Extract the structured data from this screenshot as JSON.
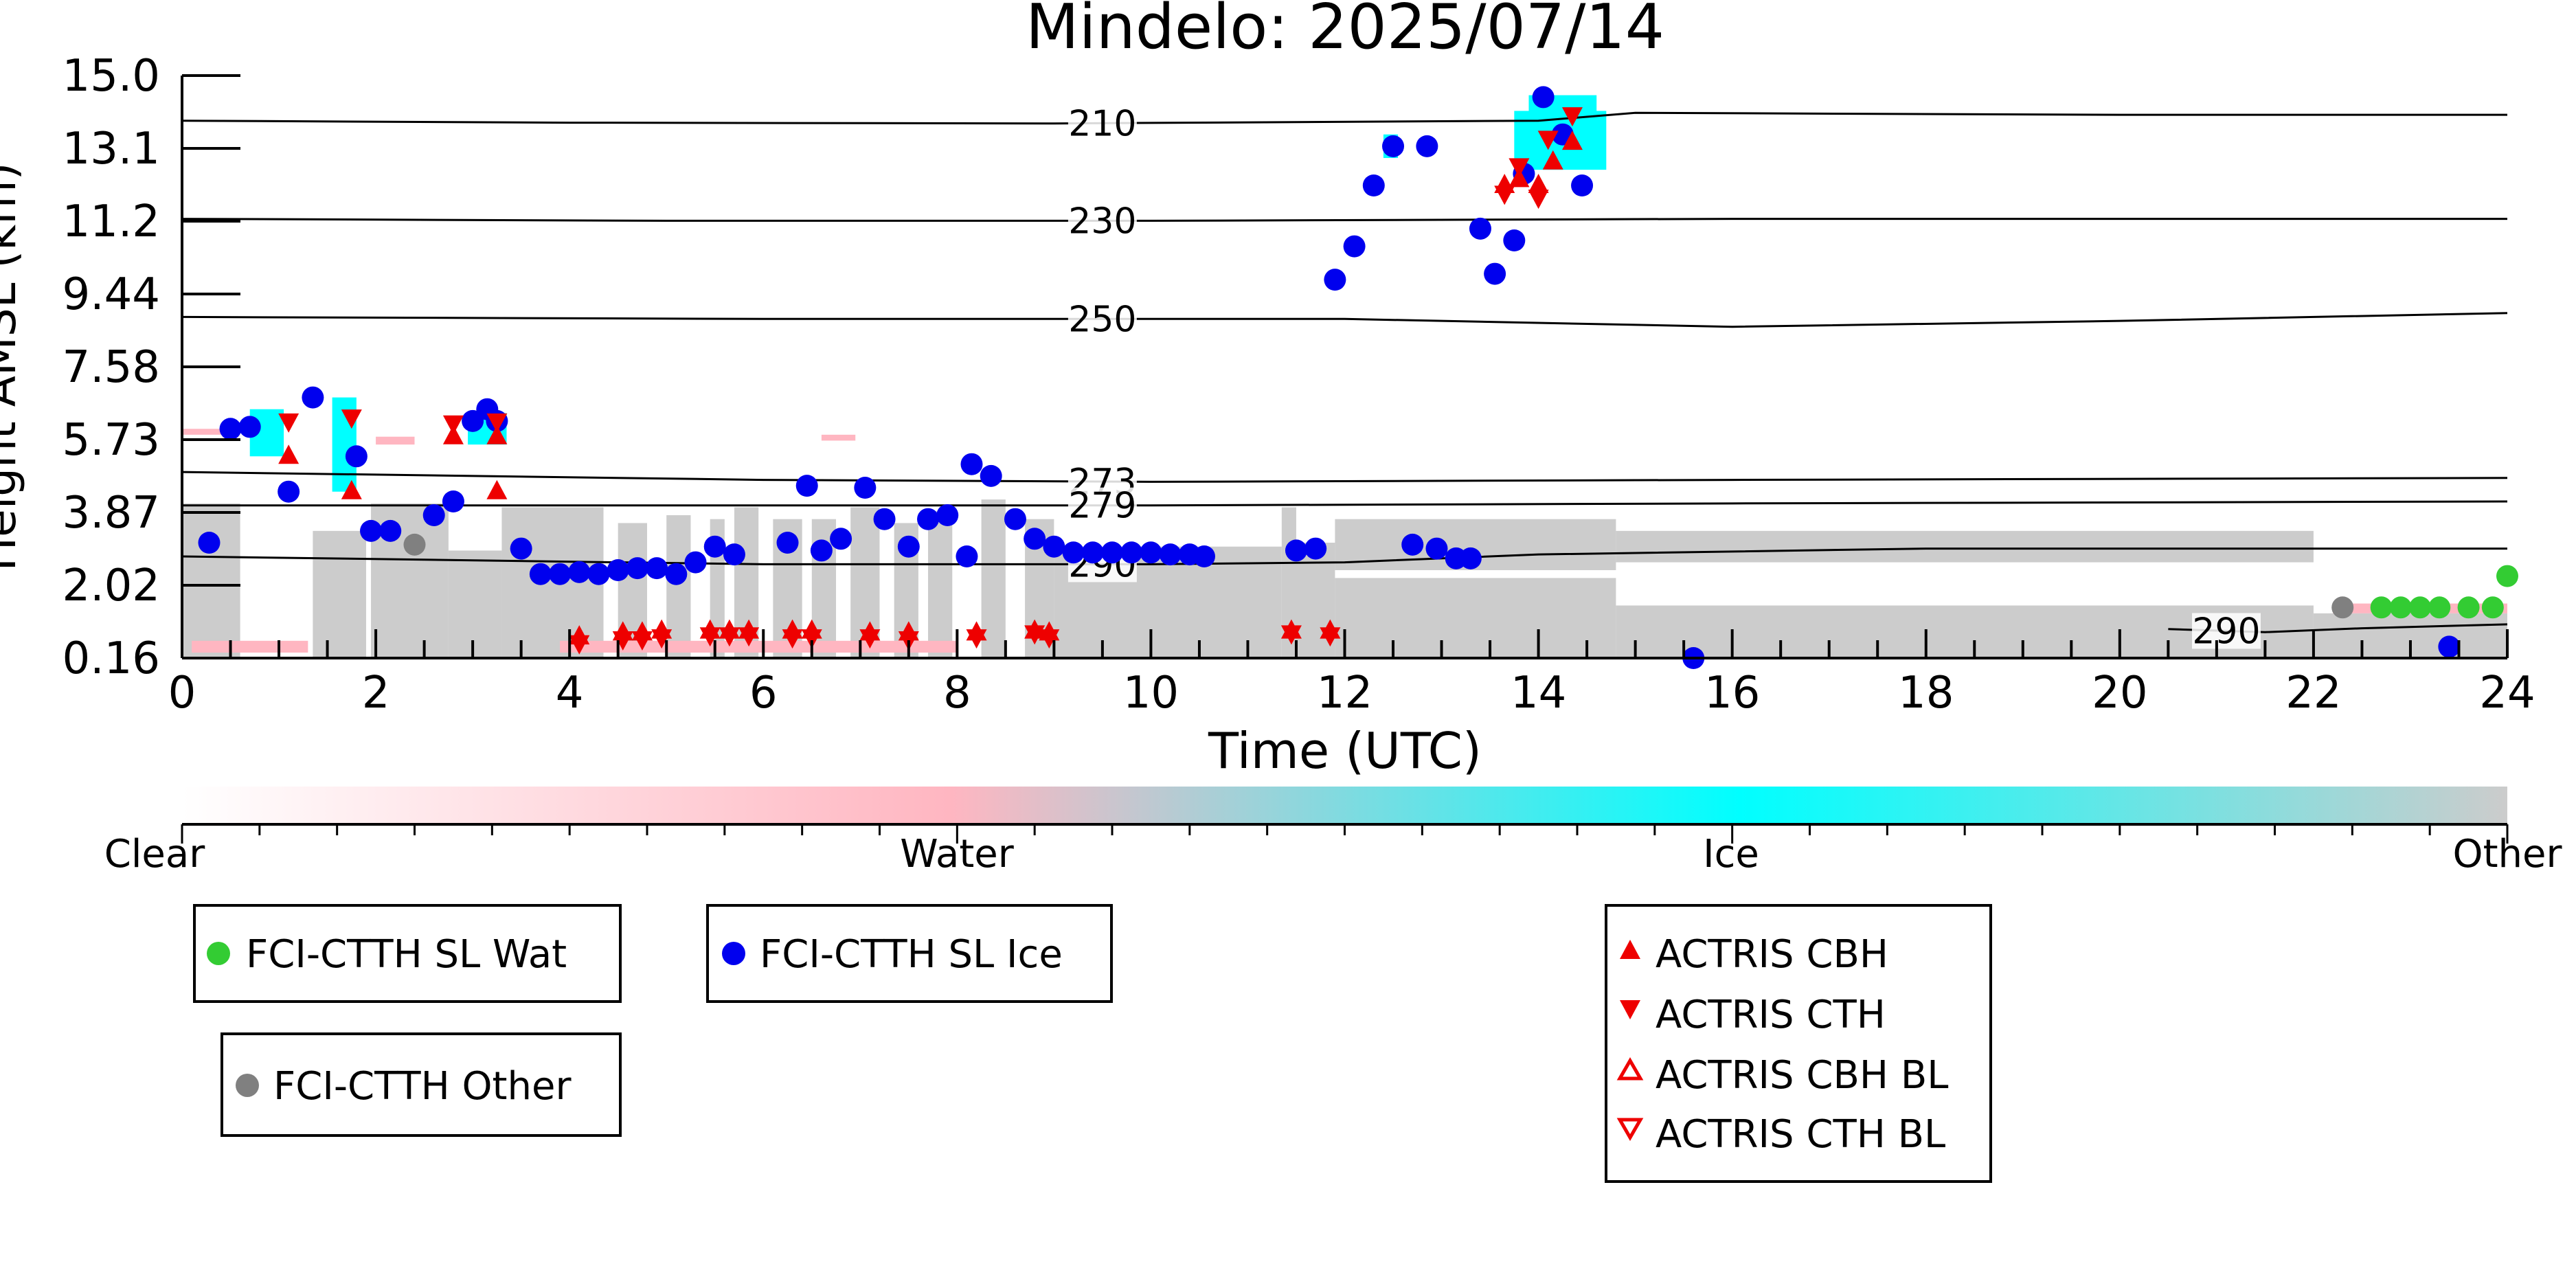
{
  "chart_data": {
    "type": "scatter",
    "title": "Mindelo: 2025/07/14",
    "xlabel": "Time (UTC)",
    "ylabel": "Height AMSL (km)",
    "xlim": [
      0,
      24
    ],
    "ylim": [
      0.16,
      15.0
    ],
    "x_ticks": [
      0,
      2,
      4,
      6,
      8,
      10,
      12,
      14,
      16,
      18,
      20,
      22,
      24
    ],
    "y_tick_labels": [
      "0.16",
      "2.02",
      "3.87",
      "5.73",
      "7.58",
      "9.44",
      "11.2",
      "13.1",
      "15.0"
    ],
    "colorbar": {
      "labels": [
        "Clear",
        "Water",
        "Ice",
        "Other"
      ],
      "colors": [
        "#ffffff",
        "#ffb6c1",
        "#00ffff",
        "#cccccc"
      ]
    },
    "contours": [
      {
        "label": "210",
        "points": [
          [
            0,
            13.85
          ],
          [
            4,
            13.8
          ],
          [
            9,
            13.78
          ],
          [
            14,
            13.85
          ],
          [
            15,
            14.05
          ],
          [
            20,
            14.0
          ],
          [
            24,
            14.0
          ]
        ]
      },
      {
        "label": "230",
        "points": [
          [
            0,
            11.35
          ],
          [
            5,
            11.3
          ],
          [
            10,
            11.3
          ],
          [
            16,
            11.35
          ],
          [
            24,
            11.35
          ]
        ]
      },
      {
        "label": "250",
        "points": [
          [
            0,
            8.85
          ],
          [
            6,
            8.8
          ],
          [
            12,
            8.8
          ],
          [
            16,
            8.6
          ],
          [
            20,
            8.75
          ],
          [
            24,
            8.95
          ]
        ]
      },
      {
        "label": "273",
        "points": [
          [
            0,
            4.9
          ],
          [
            6,
            4.7
          ],
          [
            10,
            4.65
          ],
          [
            16,
            4.7
          ],
          [
            24,
            4.75
          ]
        ]
      },
      {
        "label": "279",
        "points": [
          [
            0,
            4.05
          ],
          [
            6,
            4.05
          ],
          [
            10,
            4.05
          ],
          [
            16,
            4.1
          ],
          [
            24,
            4.15
          ]
        ]
      },
      {
        "label": "290",
        "points": [
          [
            0,
            2.75
          ],
          [
            6,
            2.55
          ],
          [
            10,
            2.55
          ],
          [
            12,
            2.6
          ],
          [
            14,
            2.8
          ],
          [
            18,
            2.95
          ],
          [
            24,
            2.95
          ]
        ]
      },
      {
        "label": "290",
        "points": [
          [
            20.5,
            0.9
          ],
          [
            21.5,
            0.82
          ],
          [
            22.5,
            0.92
          ],
          [
            24,
            1.02
          ]
        ]
      }
    ],
    "series": [
      {
        "name": "FCI-CTTH SL Wat",
        "color": "#33cc33",
        "marker": "circle",
        "points": [
          [
            22.7,
            1.45
          ],
          [
            22.9,
            1.45
          ],
          [
            23.1,
            1.45
          ],
          [
            23.3,
            1.45
          ],
          [
            23.6,
            1.45
          ],
          [
            23.85,
            1.45
          ],
          [
            24.0,
            2.25
          ]
        ]
      },
      {
        "name": "FCI-CTTH SL Ice",
        "color": "#0000ee",
        "marker": "circle",
        "points": [
          [
            0.28,
            3.1
          ],
          [
            0.5,
            6.0
          ],
          [
            0.7,
            6.05
          ],
          [
            1.1,
            4.4
          ],
          [
            1.35,
            6.8
          ],
          [
            1.8,
            5.3
          ],
          [
            1.95,
            3.4
          ],
          [
            2.15,
            3.4
          ],
          [
            2.6,
            3.8
          ],
          [
            2.8,
            4.15
          ],
          [
            3.0,
            6.2
          ],
          [
            3.15,
            6.5
          ],
          [
            3.25,
            6.2
          ],
          [
            3.5,
            2.95
          ],
          [
            3.7,
            2.3
          ],
          [
            3.9,
            2.3
          ],
          [
            4.1,
            2.35
          ],
          [
            4.3,
            2.3
          ],
          [
            4.5,
            2.4
          ],
          [
            4.7,
            2.45
          ],
          [
            4.9,
            2.45
          ],
          [
            5.1,
            2.3
          ],
          [
            5.3,
            2.6
          ],
          [
            5.5,
            3.0
          ],
          [
            5.7,
            2.8
          ],
          [
            6.25,
            3.1
          ],
          [
            6.45,
            4.55
          ],
          [
            6.6,
            2.9
          ],
          [
            6.8,
            3.2
          ],
          [
            7.05,
            4.5
          ],
          [
            7.25,
            3.7
          ],
          [
            7.5,
            3.0
          ],
          [
            7.7,
            3.7
          ],
          [
            7.9,
            3.8
          ],
          [
            8.1,
            2.75
          ],
          [
            8.15,
            5.1
          ],
          [
            8.35,
            4.8
          ],
          [
            8.6,
            3.7
          ],
          [
            8.8,
            3.2
          ],
          [
            9.0,
            3.0
          ],
          [
            9.2,
            2.85
          ],
          [
            9.4,
            2.85
          ],
          [
            9.6,
            2.85
          ],
          [
            9.8,
            2.85
          ],
          [
            10.0,
            2.85
          ],
          [
            10.2,
            2.8
          ],
          [
            10.4,
            2.8
          ],
          [
            10.55,
            2.75
          ],
          [
            11.5,
            2.9
          ],
          [
            11.7,
            2.95
          ],
          [
            11.9,
            9.8
          ],
          [
            12.1,
            10.65
          ],
          [
            12.3,
            12.2
          ],
          [
            12.5,
            13.2
          ],
          [
            12.7,
            3.05
          ],
          [
            12.85,
            13.2
          ],
          [
            12.95,
            2.95
          ],
          [
            13.15,
            2.7
          ],
          [
            13.3,
            2.7
          ],
          [
            13.4,
            11.1
          ],
          [
            13.55,
            9.95
          ],
          [
            13.75,
            10.8
          ],
          [
            13.85,
            12.5
          ],
          [
            14.05,
            14.45
          ],
          [
            14.25,
            13.5
          ],
          [
            14.45,
            12.2
          ],
          [
            15.6,
            0.16
          ],
          [
            23.4,
            0.45
          ]
        ]
      },
      {
        "name": "FCI-CTTH Other",
        "color": "#808080",
        "marker": "circle",
        "points": [
          [
            2.4,
            3.05
          ],
          [
            22.3,
            1.45
          ]
        ]
      },
      {
        "name": "ACTRIS CBH",
        "color": "#ee0000",
        "marker": "triangle-up",
        "points": [
          [
            1.1,
            5.3
          ],
          [
            1.75,
            4.4
          ],
          [
            2.8,
            5.8
          ],
          [
            3.25,
            4.4
          ],
          [
            3.25,
            5.8
          ],
          [
            4.1,
            0.7
          ],
          [
            4.55,
            0.8
          ],
          [
            4.75,
            0.8
          ],
          [
            4.95,
            0.85
          ],
          [
            5.45,
            0.85
          ],
          [
            5.65,
            0.85
          ],
          [
            5.85,
            0.85
          ],
          [
            6.3,
            0.85
          ],
          [
            6.5,
            0.85
          ],
          [
            7.1,
            0.8
          ],
          [
            7.5,
            0.8
          ],
          [
            8.2,
            0.8
          ],
          [
            8.8,
            0.85
          ],
          [
            8.95,
            0.8
          ],
          [
            11.45,
            0.85
          ],
          [
            11.85,
            0.85
          ],
          [
            13.65,
            12.2
          ],
          [
            13.8,
            12.35
          ],
          [
            14.0,
            12.2
          ],
          [
            14.15,
            12.8
          ],
          [
            14.35,
            13.3
          ]
        ]
      },
      {
        "name": "ACTRIS CTH",
        "color": "#ee0000",
        "marker": "triangle-down",
        "points": [
          [
            1.1,
            6.2
          ],
          [
            1.75,
            6.3
          ],
          [
            2.8,
            6.15
          ],
          [
            3.25,
            6.2
          ],
          [
            4.1,
            0.55
          ],
          [
            4.55,
            0.65
          ],
          [
            4.75,
            0.65
          ],
          [
            4.95,
            0.7
          ],
          [
            5.45,
            0.75
          ],
          [
            5.65,
            0.75
          ],
          [
            5.85,
            0.75
          ],
          [
            6.3,
            0.7
          ],
          [
            6.5,
            0.7
          ],
          [
            7.1,
            0.7
          ],
          [
            7.5,
            0.65
          ],
          [
            8.2,
            0.7
          ],
          [
            8.8,
            0.8
          ],
          [
            8.95,
            0.7
          ],
          [
            11.45,
            0.8
          ],
          [
            11.85,
            0.75
          ],
          [
            13.65,
            12.0
          ],
          [
            13.8,
            12.7
          ],
          [
            14.0,
            11.9
          ],
          [
            14.1,
            13.4
          ],
          [
            14.35,
            14.0
          ]
        ]
      },
      {
        "name": "ACTRIS CBH BL",
        "color": "#ee0000",
        "marker": "triangle-up-open",
        "points": []
      },
      {
        "name": "ACTRIS CTH BL",
        "color": "#ee0000",
        "marker": "triangle-down-open",
        "points": []
      }
    ],
    "cloud_mask": {
      "other_blocks": [
        [
          0,
          0.6,
          0.16,
          4.1
        ],
        [
          1.35,
          1.9,
          0.16,
          3.4
        ],
        [
          1.95,
          2.75,
          0.16,
          4.1
        ],
        [
          2.75,
          3.3,
          0.16,
          2.9
        ],
        [
          3.3,
          4.35,
          0.16,
          4.0
        ],
        [
          4.5,
          4.8,
          0.16,
          3.6
        ],
        [
          5.0,
          5.25,
          0.16,
          3.8
        ],
        [
          5.45,
          5.6,
          0.16,
          3.7
        ],
        [
          5.7,
          5.95,
          0.16,
          4.0
        ],
        [
          6.1,
          6.4,
          0.16,
          3.7
        ],
        [
          6.5,
          6.75,
          0.16,
          3.7
        ],
        [
          6.9,
          7.2,
          0.16,
          4.0
        ],
        [
          7.35,
          7.6,
          0.16,
          3.6
        ],
        [
          7.7,
          7.95,
          0.16,
          3.9
        ],
        [
          8.25,
          8.5,
          0.16,
          4.2
        ],
        [
          8.7,
          9.0,
          0.16,
          3.7
        ],
        [
          9.0,
          11.35,
          0.16,
          3.0
        ],
        [
          11.35,
          11.5,
          0.16,
          4.0
        ],
        [
          11.5,
          11.9,
          0.16,
          3.1
        ],
        [
          11.9,
          14.8,
          0.16,
          2.2
        ],
        [
          11.9,
          14.8,
          2.4,
          3.7
        ],
        [
          14.8,
          22.0,
          0.16,
          1.5
        ],
        [
          14.8,
          22.0,
          2.6,
          3.4
        ],
        [
          22.0,
          24.0,
          0.16,
          1.3
        ]
      ],
      "water_blocks": [
        [
          0,
          0.5,
          5.85,
          6.0
        ],
        [
          0.1,
          1.3,
          0.3,
          0.6
        ],
        [
          2.0,
          2.4,
          5.6,
          5.8
        ],
        [
          3.9,
          8.0,
          0.3,
          0.6
        ],
        [
          6.6,
          6.95,
          5.7,
          5.85
        ],
        [
          22.2,
          24.0,
          1.3,
          1.55
        ]
      ],
      "ice_blocks": [
        [
          0.7,
          1.05,
          5.3,
          6.5
        ],
        [
          1.55,
          1.8,
          4.4,
          6.8
        ],
        [
          2.95,
          3.35,
          5.6,
          6.4
        ],
        [
          12.4,
          12.55,
          12.9,
          13.5
        ],
        [
          13.75,
          14.7,
          12.6,
          14.1
        ],
        [
          13.9,
          14.6,
          13.6,
          14.5
        ]
      ]
    }
  },
  "legend": {
    "wat": {
      "label": "FCI-CTTH SL Wat",
      "color": "#33cc33"
    },
    "ice": {
      "label": "FCI-CTTH SL Ice",
      "color": "#0000ee"
    },
    "other": {
      "label": "FCI-CTTH Other",
      "color": "#808080"
    },
    "actris_cbh": {
      "label": "ACTRIS CBH",
      "color": "#ee0000"
    },
    "actris_cth": {
      "label": "ACTRIS CTH",
      "color": "#ee0000"
    },
    "actris_cbh_bl": {
      "label": "ACTRIS CBH BL",
      "color": "#ee0000"
    },
    "actris_cth_bl": {
      "label": "ACTRIS CTH BL",
      "color": "#ee0000"
    }
  }
}
